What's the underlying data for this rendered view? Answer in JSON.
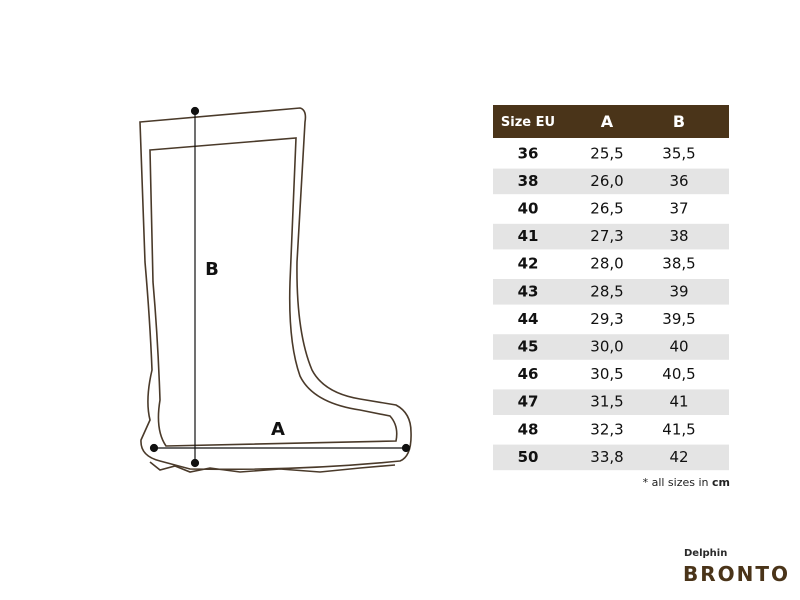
{
  "diagram": {
    "labels": {
      "height": "B",
      "length": "A"
    }
  },
  "table": {
    "header": [
      "Size EU",
      "A",
      "B"
    ],
    "rows": [
      [
        "36",
        "25,5",
        "35,5"
      ],
      [
        "38",
        "26,0",
        "36"
      ],
      [
        "40",
        "26,5",
        "37"
      ],
      [
        "41",
        "27,3",
        "38"
      ],
      [
        "42",
        "28,0",
        "38,5"
      ],
      [
        "43",
        "28,5",
        "39"
      ],
      [
        "44",
        "29,3",
        "39,5"
      ],
      [
        "45",
        "30,0",
        "40"
      ],
      [
        "46",
        "30,5",
        "40,5"
      ],
      [
        "47",
        "31,5",
        "41"
      ],
      [
        "48",
        "32,3",
        "41,5"
      ],
      [
        "50",
        "33,8",
        "42"
      ]
    ]
  },
  "note": {
    "text": "* all sizes in ",
    "unit": "cm"
  },
  "brand": {
    "maker": "Delphin",
    "product": "BRONTO"
  }
}
